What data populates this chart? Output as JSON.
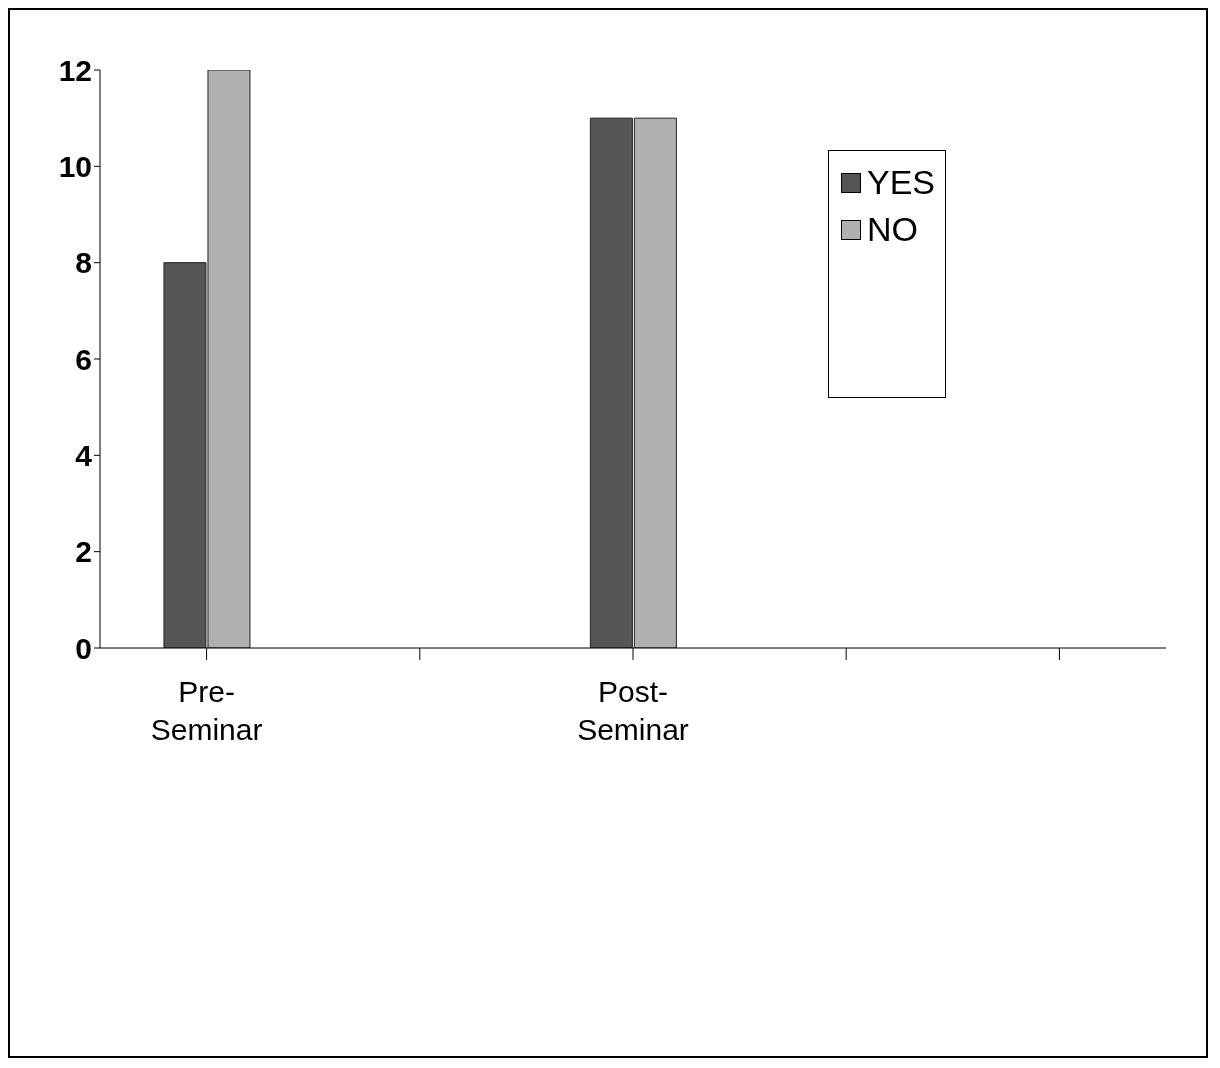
{
  "chart_data": {
    "type": "bar",
    "categories": [
      "Pre-\nSeminar",
      null,
      "Post-\nSeminar",
      null,
      null
    ],
    "series": [
      {
        "name": "YES",
        "color": "#555555",
        "values": [
          8,
          null,
          11,
          null,
          null
        ]
      },
      {
        "name": "NO",
        "color": "#b0b0b0",
        "values": [
          12,
          null,
          11,
          null,
          null
        ]
      }
    ],
    "ylim": [
      0,
      12
    ],
    "yticks": [
      0,
      2,
      4,
      6,
      8,
      10,
      12
    ],
    "grid": false,
    "legend": "top right"
  }
}
